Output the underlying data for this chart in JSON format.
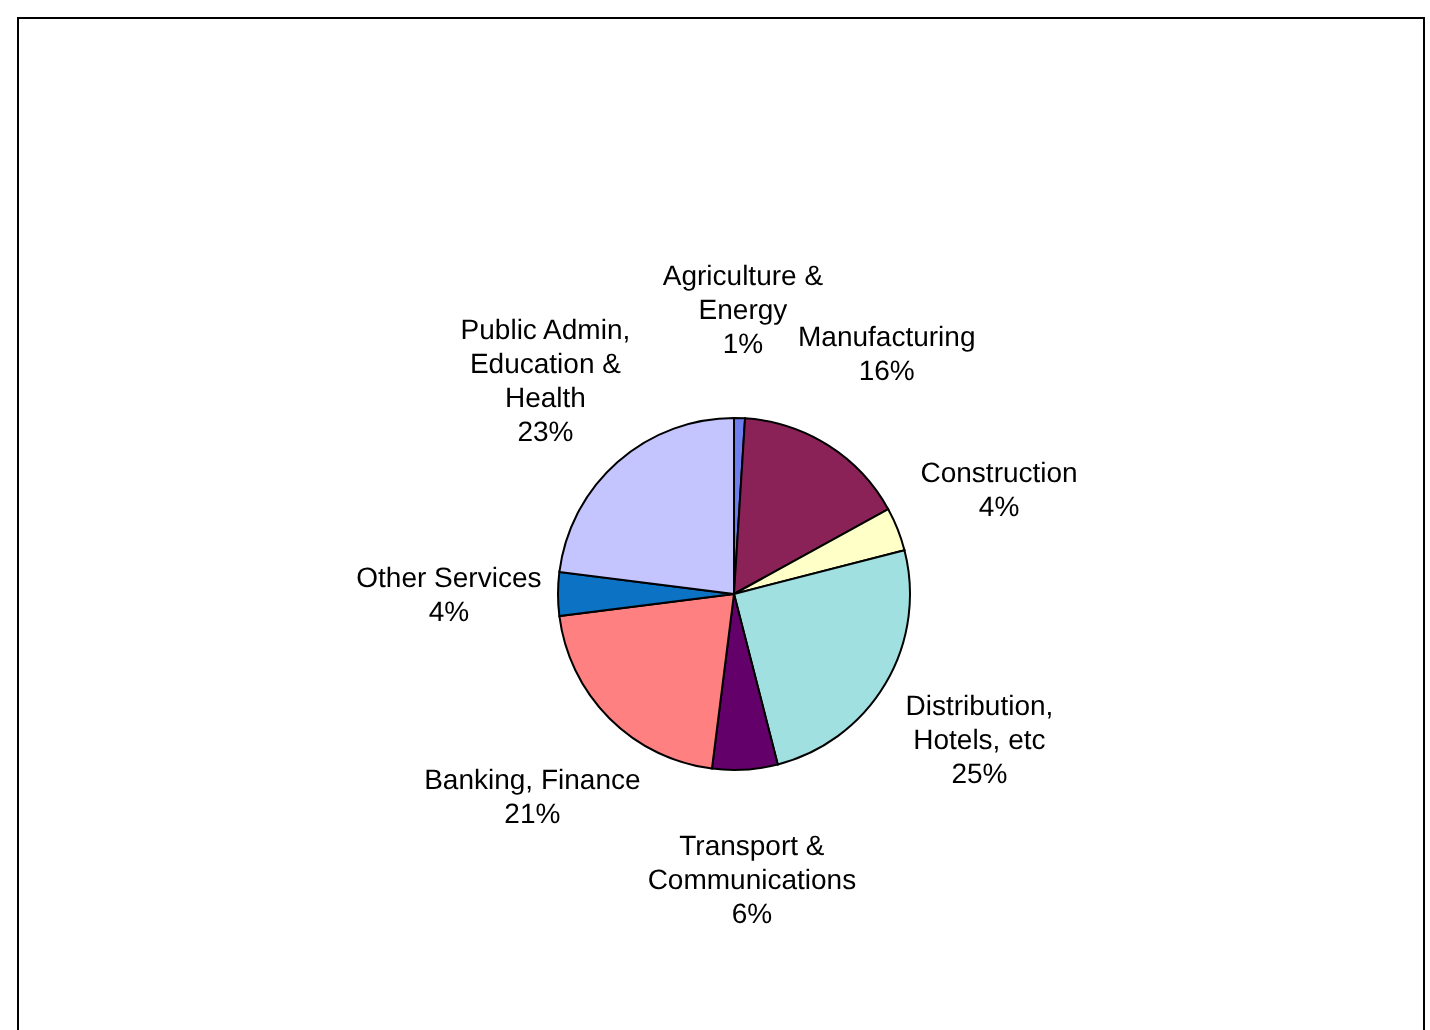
{
  "chart_data": {
    "type": "pie",
    "categories": [
      "Agriculture &\nEnergy",
      "Manufacturing",
      "Construction",
      "Distribution,\nHotels, etc",
      "Transport &\nCommunications",
      "Banking, Finance",
      "Other Services",
      "Public Admin,\nEducation &\nHealth"
    ],
    "values": [
      1,
      16,
      4,
      25,
      6,
      21,
      4,
      23
    ],
    "colors": [
      "#6f7ff0",
      "#8b2257",
      "#ffffc8",
      "#a0e0e0",
      "#640069",
      "#ff8080",
      "#0b72c4",
      "#c4c4ff"
    ],
    "value_labels": [
      "1%",
      "16%",
      "4%",
      "25%",
      "6%",
      "21%",
      "4%",
      "23%"
    ]
  }
}
